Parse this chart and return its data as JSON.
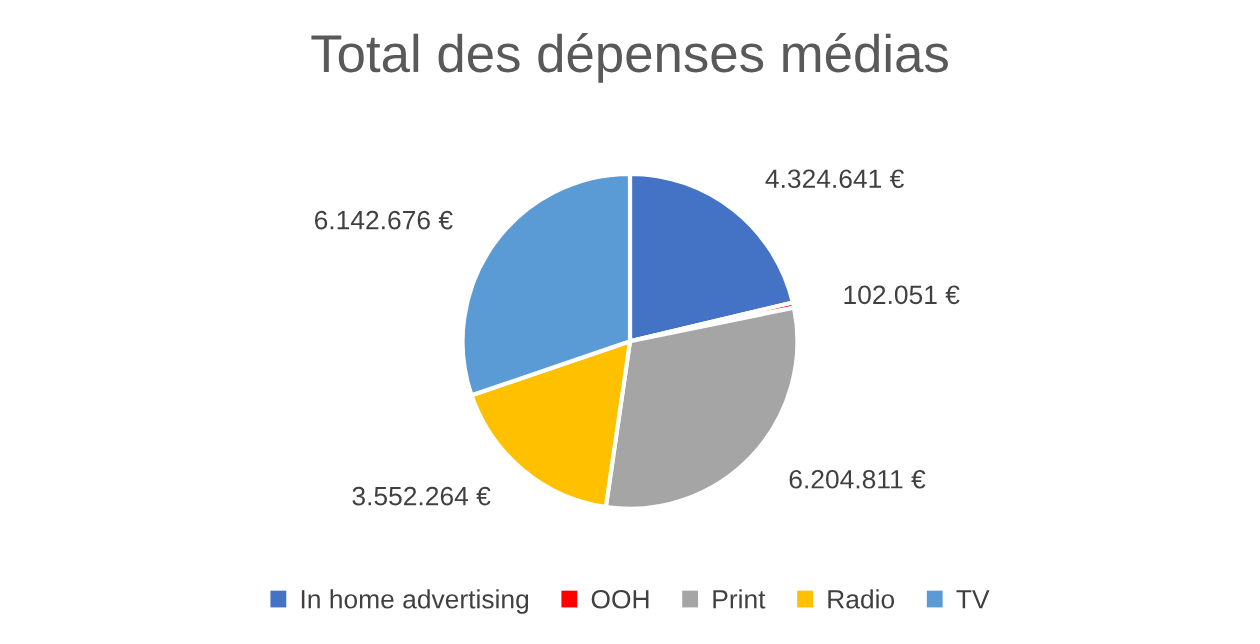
{
  "chart_data": {
    "type": "pie",
    "title": "Total des dépenses médias",
    "categories": [
      "In home advertising",
      "OOH",
      "Print",
      "Radio",
      "TV"
    ],
    "values": [
      4324641,
      102051,
      6204811,
      3552264,
      6142676
    ],
    "colors": [
      "#4472c4",
      "#ff0000",
      "#a5a5a5",
      "#ffc000",
      "#5b9bd5"
    ],
    "value_labels": [
      "4.324.641 €",
      "102.051 €",
      "6.204.811 €",
      "3.552.264 €",
      "6.142.676 €"
    ],
    "legend": "bottom"
  }
}
